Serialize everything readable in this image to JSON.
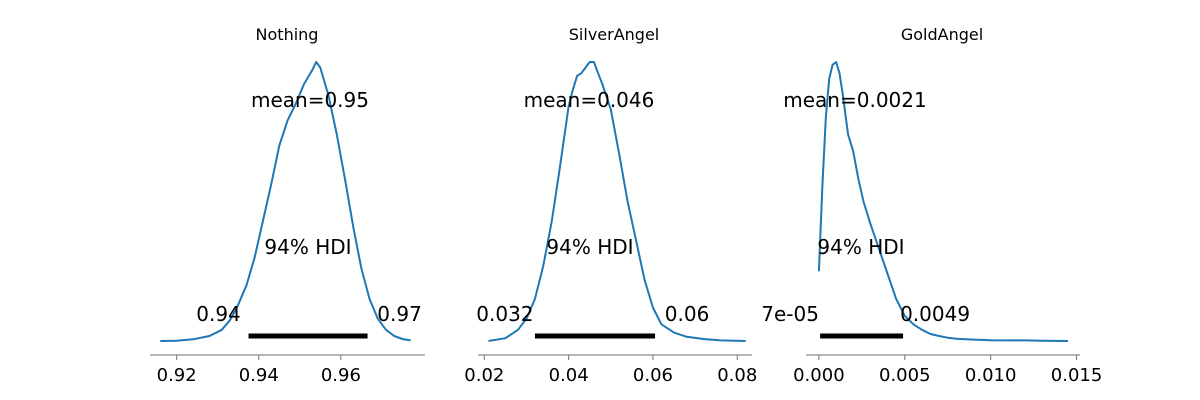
{
  "chart_data": [
    {
      "type": "area",
      "title": "Nothing",
      "line_color": "#1f77b4",
      "mean_label": "mean=0.95",
      "hdi_label": "94% HDI",
      "hdi_low": 0.9375,
      "hdi_high": 0.9665,
      "hdi_low_label": "0.94",
      "hdi_high_label": "0.97",
      "xlim": [
        0.9135,
        0.9805
      ],
      "xticks": [
        0.92,
        0.94,
        0.96
      ],
      "xtick_labels": [
        "0.92",
        "0.94",
        "0.96"
      ],
      "x": [
        0.916,
        0.92,
        0.924,
        0.928,
        0.931,
        0.933,
        0.935,
        0.937,
        0.939,
        0.941,
        0.943,
        0.945,
        0.947,
        0.949,
        0.951,
        0.953,
        0.954,
        0.955,
        0.957,
        0.959,
        0.961,
        0.963,
        0.965,
        0.967,
        0.969,
        0.971,
        0.973,
        0.975,
        0.977
      ],
      "y": [
        0.0,
        0.001,
        0.006,
        0.018,
        0.04,
        0.075,
        0.13,
        0.2,
        0.3,
        0.43,
        0.56,
        0.7,
        0.79,
        0.85,
        0.92,
        0.97,
        1.0,
        0.98,
        0.88,
        0.74,
        0.58,
        0.41,
        0.26,
        0.15,
        0.08,
        0.04,
        0.018,
        0.007,
        0.002
      ]
    },
    {
      "type": "area",
      "title": "SilverAngel",
      "line_color": "#1f77b4",
      "mean_label": "mean=0.046",
      "hdi_label": "94% HDI",
      "hdi_low": 0.032,
      "hdi_high": 0.0605,
      "hdi_low_label": "0.032",
      "hdi_high_label": "0.06",
      "xlim": [
        0.0185,
        0.0835
      ],
      "xticks": [
        0.02,
        0.04,
        0.06,
        0.08
      ],
      "xtick_labels": [
        "0.02",
        "0.04",
        "0.06",
        "0.08"
      ],
      "x": [
        0.021,
        0.025,
        0.028,
        0.03,
        0.032,
        0.034,
        0.036,
        0.038,
        0.04,
        0.041,
        0.042,
        0.043,
        0.044,
        0.045,
        0.046,
        0.047,
        0.048,
        0.05,
        0.052,
        0.054,
        0.056,
        0.058,
        0.06,
        0.062,
        0.065,
        0.068,
        0.072,
        0.076,
        0.082
      ],
      "y": [
        0.0,
        0.01,
        0.04,
        0.08,
        0.15,
        0.27,
        0.43,
        0.63,
        0.84,
        0.9,
        0.95,
        0.96,
        0.98,
        1.0,
        1.0,
        0.96,
        0.92,
        0.83,
        0.67,
        0.5,
        0.36,
        0.22,
        0.12,
        0.06,
        0.03,
        0.015,
        0.007,
        0.002,
        0.0
      ]
    },
    {
      "type": "area",
      "title": "GoldAngel",
      "line_color": "#1f77b4",
      "mean_label": "mean=0.0021",
      "hdi_label": "94% HDI",
      "hdi_low": 7e-05,
      "hdi_high": 0.0049,
      "hdi_low_label": "7e-05",
      "hdi_high_label": "0.0049",
      "xlim": [
        -0.00075,
        0.0152
      ],
      "xticks": [
        0.0,
        0.005,
        0.01,
        0.015
      ],
      "xtick_labels": [
        "0.000",
        "0.005",
        "0.010",
        "0.015"
      ],
      "x": [
        0.0,
        0.0002,
        0.0004,
        0.0006,
        0.0008,
        0.001,
        0.0012,
        0.0014,
        0.0017,
        0.002,
        0.0023,
        0.0026,
        0.003,
        0.0035,
        0.004,
        0.0045,
        0.005,
        0.0055,
        0.006,
        0.0065,
        0.007,
        0.0075,
        0.008,
        0.009,
        0.01,
        0.011,
        0.012,
        0.013,
        0.0145
      ],
      "y": [
        0.25,
        0.55,
        0.8,
        0.94,
        0.99,
        1.0,
        0.96,
        0.88,
        0.74,
        0.68,
        0.58,
        0.5,
        0.42,
        0.33,
        0.24,
        0.15,
        0.09,
        0.06,
        0.04,
        0.025,
        0.018,
        0.012,
        0.008,
        0.005,
        0.003,
        0.002,
        0.002,
        0.001,
        0.0
      ]
    }
  ]
}
